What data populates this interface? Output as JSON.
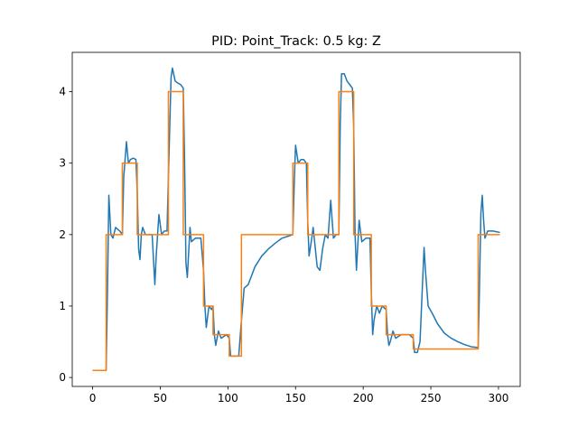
{
  "chart_data": {
    "type": "line",
    "title": "PID: Point_Track: 0.5 kg: Z",
    "xlim": [
      -15.05,
      316.05
    ],
    "ylim": [
      -0.125,
      4.55
    ],
    "xticks": [
      0,
      50,
      100,
      150,
      200,
      250,
      300
    ],
    "yticks": [
      0,
      1,
      2,
      3,
      4
    ],
    "grid": false,
    "series": [
      {
        "color": "#1f77b4",
        "x": [
          0,
          10,
          11,
          12,
          13.5,
          15,
          17,
          20,
          22,
          23,
          25,
          26.5,
          28,
          30,
          32,
          33,
          34,
          35,
          36,
          37,
          39,
          44,
          46,
          47,
          49,
          51,
          53,
          55,
          56,
          58,
          59,
          61,
          63,
          65,
          67,
          68,
          69,
          70,
          72,
          73,
          76,
          80,
          82,
          83,
          84,
          86,
          88,
          89,
          90,
          91,
          93,
          95,
          99,
          101,
          102,
          105,
          108,
          110,
          112,
          115,
          120,
          125,
          130,
          135,
          140,
          145,
          148,
          149,
          150,
          152,
          154,
          156,
          158,
          159,
          160,
          162,
          163,
          166,
          168,
          170,
          172,
          174,
          176,
          178,
          180,
          182,
          183,
          184,
          186,
          188,
          190,
          192,
          193,
          194,
          195,
          197,
          199,
          202,
          205,
          206,
          207,
          208,
          210,
          212,
          214,
          217,
          218,
          219,
          220,
          222,
          224,
          228,
          234,
          237,
          238,
          240,
          242,
          245,
          246,
          248,
          251,
          255,
          260,
          265,
          270,
          275,
          280,
          285,
          286,
          287,
          288,
          289,
          290,
          292,
          296,
          301
        ],
        "values": [
          0.1,
          0.1,
          1.2,
          2.55,
          2.0,
          1.95,
          2.1,
          2.05,
          2.0,
          2.8,
          3.3,
          3.0,
          3.05,
          3.07,
          3.05,
          2.6,
          1.8,
          1.65,
          2.0,
          2.1,
          2.0,
          2.0,
          1.3,
          1.7,
          2.28,
          2.0,
          2.05,
          2.05,
          2.8,
          4.2,
          4.33,
          4.15,
          4.12,
          4.1,
          4.05,
          3.0,
          1.6,
          1.4,
          2.1,
          1.9,
          1.95,
          1.95,
          1.5,
          1.0,
          0.7,
          1.0,
          0.95,
          1.0,
          0.6,
          0.45,
          0.65,
          0.55,
          0.6,
          0.55,
          0.3,
          0.3,
          0.3,
          0.8,
          1.25,
          1.3,
          1.55,
          1.7,
          1.8,
          1.88,
          1.95,
          1.98,
          2.0,
          2.7,
          3.25,
          3.0,
          3.05,
          3.05,
          3.0,
          2.2,
          1.7,
          1.95,
          2.1,
          1.55,
          1.5,
          1.8,
          2.0,
          1.95,
          2.48,
          1.95,
          2.0,
          2.0,
          3.5,
          4.25,
          4.25,
          4.15,
          4.1,
          4.05,
          3.5,
          2.0,
          1.5,
          2.2,
          1.9,
          1.95,
          1.95,
          1.2,
          0.6,
          0.8,
          1.0,
          0.9,
          1.0,
          0.95,
          0.6,
          0.45,
          0.5,
          0.65,
          0.55,
          0.6,
          0.6,
          0.55,
          0.35,
          0.35,
          0.5,
          1.82,
          1.5,
          1.0,
          0.9,
          0.75,
          0.62,
          0.55,
          0.5,
          0.46,
          0.43,
          0.42,
          1.3,
          2.3,
          2.55,
          2.2,
          1.95,
          2.05,
          2.05,
          2.03
        ]
      },
      {
        "color": "#ff7f0e",
        "x": [
          0,
          10,
          10,
          22,
          22,
          33,
          33,
          56,
          56,
          67,
          67,
          82,
          82,
          89,
          89,
          101,
          101,
          110,
          110,
          148,
          148,
          159,
          159,
          182,
          182,
          193,
          193,
          206,
          206,
          217,
          217,
          237,
          237,
          285,
          285,
          301
        ],
        "values": [
          0.1,
          0.1,
          2,
          2,
          3,
          3,
          2,
          2,
          4,
          4,
          2,
          2,
          1,
          1,
          0.6,
          0.6,
          0.3,
          0.3,
          2,
          2,
          3,
          3,
          2,
          2,
          4,
          4,
          2,
          2,
          1,
          1,
          0.6,
          0.6,
          0.4,
          0.4,
          2,
          2
        ]
      }
    ]
  }
}
